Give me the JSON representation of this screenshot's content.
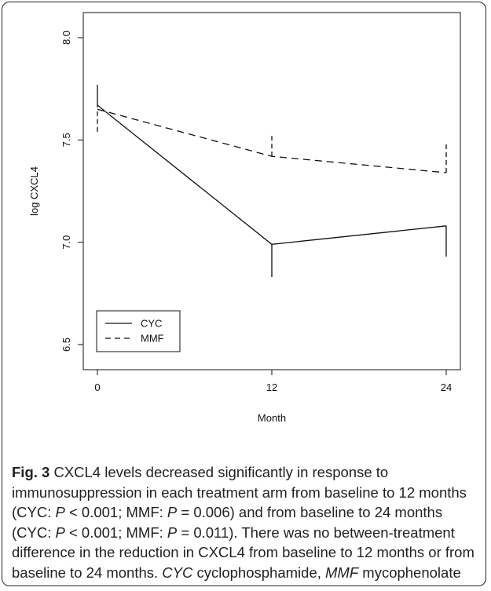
{
  "chart_data": {
    "type": "line",
    "title": "",
    "xlabel": "Month",
    "ylabel": "log CXCL4",
    "x": [
      0,
      12,
      24
    ],
    "xlim": [
      0,
      24
    ],
    "ylim": [
      6.5,
      8.0
    ],
    "x_ticks": [
      "0",
      "12",
      "24"
    ],
    "y_ticks": [
      "6.5",
      "7.0",
      "7.5",
      "8.0"
    ],
    "series": [
      {
        "name": "CYC",
        "style": "solid",
        "values": [
          7.67,
          6.99,
          7.08
        ],
        "error_bars": [
          [
            7.66,
            7.77
          ],
          [
            6.83,
            6.99
          ],
          [
            6.93,
            7.08
          ]
        ]
      },
      {
        "name": "MMF",
        "style": "dashed",
        "values": [
          7.65,
          7.42,
          7.34
        ],
        "error_bars": [
          [
            7.54,
            7.65
          ],
          [
            7.42,
            7.53
          ],
          [
            7.34,
            7.48
          ]
        ]
      }
    ],
    "legend": {
      "position": "bottom-left",
      "entries": [
        "CYC",
        "MMF"
      ]
    },
    "grid": false,
    "color": "#111111"
  },
  "caption": {
    "fig_label": "Fig. 3",
    "p1": " CXCL4 levels decreased significantly in response to immunosuppression in each treatment arm from baseline to 12 months (CYC: ",
    "P": "P",
    "p2": " < 0.001; MMF: ",
    "p3": " = 0.006) and from baseline to 24 months (CYC: ",
    "p4": " < 0.001; MMF: ",
    "p5": " = 0.011). There was no between-treatment difference in the reduction in CXCL4 from baseline to 12 months or from baseline to 24 months. ",
    "abbr_cyc": "CYC",
    "def_cyc": " cyclophosphamide, ",
    "abbr_mmf": "MMF",
    "def_mmf": " mycophenolate"
  }
}
